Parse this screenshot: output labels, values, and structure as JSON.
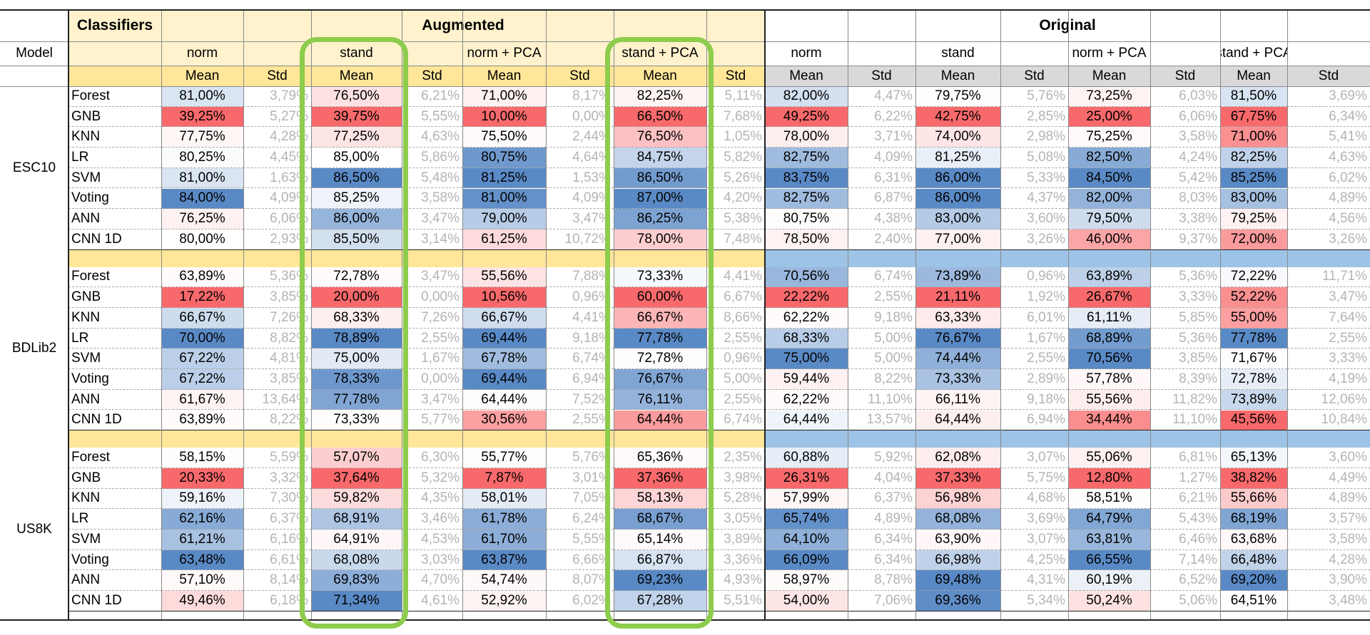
{
  "header": {
    "classifiers_label": "Classifiers",
    "model_label": "Model",
    "augmented_label": "Augmented",
    "original_label": "Original",
    "groups": [
      "norm",
      "stand",
      "norm + PCA",
      "stand + PCA",
      "norm",
      "stand",
      "norm + PCA",
      "stand + PCA"
    ],
    "mean_label": "Mean",
    "std_label": "Std"
  },
  "highlighted_columns": [
    "stand",
    "stand + PCA"
  ],
  "colors": {
    "yellow": "#fff2cc",
    "yellow_strong": "#ffe699",
    "blue_header": "#9dc3e6",
    "gray_header": "#d9d9d9",
    "highlight_border": "#8dcc4c",
    "scale_low": "#f8696b",
    "scale_high": "#5a8ac6"
  },
  "datasets": [
    {
      "name": "ESC10",
      "rows": [
        {
          "classifier": "Forest",
          "means": [
            "81,00%",
            "76,50%",
            "71,00%",
            "82,25%",
            "82,00%",
            "79,75%",
            "73,25%",
            "81,50%"
          ],
          "stds": [
            "3,79%",
            "6,21%",
            "8,17%",
            "5,11%",
            "4,47%",
            "5,76%",
            "6,03%",
            "3,69%"
          ]
        },
        {
          "classifier": "GNB",
          "means": [
            "39,25%",
            "39,75%",
            "10,00%",
            "66,50%",
            "49,25%",
            "42,75%",
            "25,00%",
            "67,75%"
          ],
          "stds": [
            "5,27%",
            "5,55%",
            "0,00%",
            "7,68%",
            "6,22%",
            "2,85%",
            "6,06%",
            "6,34%"
          ]
        },
        {
          "classifier": "KNN",
          "means": [
            "77,75%",
            "77,25%",
            "75,50%",
            "76,50%",
            "78,00%",
            "74,00%",
            "75,25%",
            "71,00%"
          ],
          "stds": [
            "4,28%",
            "4,63%",
            "2,44%",
            "1,05%",
            "3,71%",
            "2,98%",
            "3,58%",
            "5,41%"
          ]
        },
        {
          "classifier": "LR",
          "means": [
            "80,25%",
            "85,00%",
            "80,75%",
            "84,75%",
            "82,75%",
            "81,25%",
            "82,50%",
            "82,25%"
          ],
          "stds": [
            "4,45%",
            "5,86%",
            "4,64%",
            "5,82%",
            "4,09%",
            "5,08%",
            "4,24%",
            "4,63%"
          ]
        },
        {
          "classifier": "SVM",
          "means": [
            "81,00%",
            "86,50%",
            "81,25%",
            "86,50%",
            "83,75%",
            "86,00%",
            "84,50%",
            "85,25%"
          ],
          "stds": [
            "1,63%",
            "5,48%",
            "1,53%",
            "5,26%",
            "6,31%",
            "5,33%",
            "5,42%",
            "6,02%"
          ]
        },
        {
          "classifier": "Voting",
          "means": [
            "84,00%",
            "85,25%",
            "81,00%",
            "87,00%",
            "82,75%",
            "86,00%",
            "82,00%",
            "83,00%"
          ],
          "stds": [
            "4,09%",
            "3,58%",
            "4,09%",
            "4,20%",
            "6,87%",
            "4,37%",
            "8,03%",
            "4,89%"
          ]
        },
        {
          "classifier": "ANN",
          "means": [
            "76,25%",
            "86,00%",
            "79,00%",
            "86,25%",
            "80,75%",
            "83,00%",
            "79,50%",
            "79,25%"
          ],
          "stds": [
            "6,06%",
            "3,47%",
            "3,47%",
            "5,38%",
            "4,38%",
            "3,60%",
            "3,38%",
            "4,56%"
          ]
        },
        {
          "classifier": "CNN 1D",
          "means": [
            "80,00%",
            "85,50%",
            "61,25%",
            "78,00%",
            "78,50%",
            "77,00%",
            "46,00%",
            "72,00%"
          ],
          "stds": [
            "2,93%",
            "3,14%",
            "10,72%",
            "7,48%",
            "2,40%",
            "3,26%",
            "9,37%",
            "3,26%"
          ]
        }
      ]
    },
    {
      "name": "BDLib2",
      "rows": [
        {
          "classifier": "Forest",
          "means": [
            "63,89%",
            "72,78%",
            "55,56%",
            "73,33%",
            "70,56%",
            "73,89%",
            "63,89%",
            "72,22%"
          ],
          "stds": [
            "5,36%",
            "3,47%",
            "7,88%",
            "4,41%",
            "6,74%",
            "0,96%",
            "5,36%",
            "11,71%"
          ]
        },
        {
          "classifier": "GNB",
          "means": [
            "17,22%",
            "20,00%",
            "10,56%",
            "60,00%",
            "22,22%",
            "21,11%",
            "26,67%",
            "52,22%"
          ],
          "stds": [
            "3,85%",
            "0,00%",
            "0,96%",
            "6,67%",
            "2,55%",
            "1,92%",
            "3,33%",
            "3,47%"
          ]
        },
        {
          "classifier": "KNN",
          "means": [
            "66,67%",
            "68,33%",
            "66,67%",
            "66,67%",
            "62,22%",
            "63,33%",
            "61,11%",
            "55,00%"
          ],
          "stds": [
            "7,26%",
            "7,26%",
            "4,41%",
            "8,66%",
            "9,18%",
            "6,01%",
            "5,85%",
            "7,64%"
          ]
        },
        {
          "classifier": "LR",
          "means": [
            "70,00%",
            "78,89%",
            "69,44%",
            "77,78%",
            "68,33%",
            "76,67%",
            "68,89%",
            "77,78%"
          ],
          "stds": [
            "8,82%",
            "2,55%",
            "9,18%",
            "2,55%",
            "5,00%",
            "1,67%",
            "5,36%",
            "2,55%"
          ]
        },
        {
          "classifier": "SVM",
          "means": [
            "67,22%",
            "75,00%",
            "67,78%",
            "72,78%",
            "75,00%",
            "74,44%",
            "70,56%",
            "71,67%"
          ],
          "stds": [
            "4,81%",
            "1,67%",
            "6,74%",
            "0,96%",
            "5,00%",
            "2,55%",
            "3,85%",
            "3,33%"
          ]
        },
        {
          "classifier": "Voting",
          "means": [
            "67,22%",
            "78,33%",
            "69,44%",
            "76,67%",
            "59,44%",
            "73,33%",
            "57,78%",
            "72,78%"
          ],
          "stds": [
            "3,85%",
            "0,00%",
            "6,94%",
            "5,00%",
            "8,22%",
            "2,89%",
            "8,39%",
            "4,19%"
          ]
        },
        {
          "classifier": "ANN",
          "means": [
            "61,67%",
            "77,78%",
            "64,44%",
            "76,11%",
            "62,22%",
            "66,11%",
            "55,56%",
            "73,89%"
          ],
          "stds": [
            "13,64%",
            "3,47%",
            "7,52%",
            "2,55%",
            "11,10%",
            "9,18%",
            "11,82%",
            "12,06%"
          ]
        },
        {
          "classifier": "CNN 1D",
          "means": [
            "63,89%",
            "73,33%",
            "30,56%",
            "64,44%",
            "64,44%",
            "64,44%",
            "34,44%",
            "45,56%"
          ],
          "stds": [
            "8,22%",
            "5,77%",
            "2,55%",
            "6,74%",
            "13,57%",
            "6,94%",
            "11,10%",
            "10,84%"
          ]
        }
      ]
    },
    {
      "name": "US8K",
      "rows": [
        {
          "classifier": "Forest",
          "means": [
            "58,15%",
            "57,07%",
            "55,77%",
            "65,36%",
            "60,88%",
            "62,08%",
            "55,06%",
            "65,13%"
          ],
          "stds": [
            "5,59%",
            "6,30%",
            "5,76%",
            "2,35%",
            "5,92%",
            "3,07%",
            "6,81%",
            "3,60%"
          ]
        },
        {
          "classifier": "GNB",
          "means": [
            "20,33%",
            "37,64%",
            "7,87%",
            "37,36%",
            "26,31%",
            "37,33%",
            "12,80%",
            "38,82%"
          ],
          "stds": [
            "3,32%",
            "5,32%",
            "3,01%",
            "3,98%",
            "4,04%",
            "5,75%",
            "1,27%",
            "4,49%"
          ]
        },
        {
          "classifier": "KNN",
          "means": [
            "59,16%",
            "59,82%",
            "58,01%",
            "58,13%",
            "57,99%",
            "56,98%",
            "58,51%",
            "55,66%"
          ],
          "stds": [
            "7,30%",
            "4,35%",
            "7,05%",
            "5,28%",
            "6,37%",
            "4,68%",
            "6,21%",
            "4,89%"
          ]
        },
        {
          "classifier": "LR",
          "means": [
            "62,16%",
            "68,91%",
            "61,78%",
            "68,67%",
            "65,74%",
            "68,08%",
            "64,79%",
            "68,19%"
          ],
          "stds": [
            "6,37%",
            "3,46%",
            "6,24%",
            "3,05%",
            "4,89%",
            "3,69%",
            "5,43%",
            "3,57%"
          ]
        },
        {
          "classifier": "SVM",
          "means": [
            "61,21%",
            "64,91%",
            "61,70%",
            "65,14%",
            "64,10%",
            "63,90%",
            "63,81%",
            "63,68%"
          ],
          "stds": [
            "6,16%",
            "4,53%",
            "5,55%",
            "3,89%",
            "6,34%",
            "3,07%",
            "6,46%",
            "3,58%"
          ]
        },
        {
          "classifier": "Voting",
          "means": [
            "63,48%",
            "68,08%",
            "63,87%",
            "66,87%",
            "66,09%",
            "66,98%",
            "66,55%",
            "66,48%"
          ],
          "stds": [
            "6,61%",
            "3,03%",
            "6,66%",
            "3,36%",
            "6,34%",
            "4,25%",
            "7,14%",
            "4,28%"
          ]
        },
        {
          "classifier": "ANN",
          "means": [
            "57,10%",
            "69,83%",
            "54,74%",
            "69,23%",
            "58,97%",
            "69,48%",
            "60,19%",
            "69,20%"
          ],
          "stds": [
            "8,14%",
            "4,70%",
            "8,07%",
            "4,93%",
            "8,78%",
            "4,31%",
            "6,52%",
            "3,90%"
          ]
        },
        {
          "classifier": "CNN 1D",
          "means": [
            "49,46%",
            "71,34%",
            "52,92%",
            "67,28%",
            "54,00%",
            "69,36%",
            "50,24%",
            "64,51%"
          ],
          "stds": [
            "6,18%",
            "4,61%",
            "6,02%",
            "5,51%",
            "7,06%",
            "5,34%",
            "5,06%",
            "3,48%"
          ]
        }
      ]
    }
  ]
}
